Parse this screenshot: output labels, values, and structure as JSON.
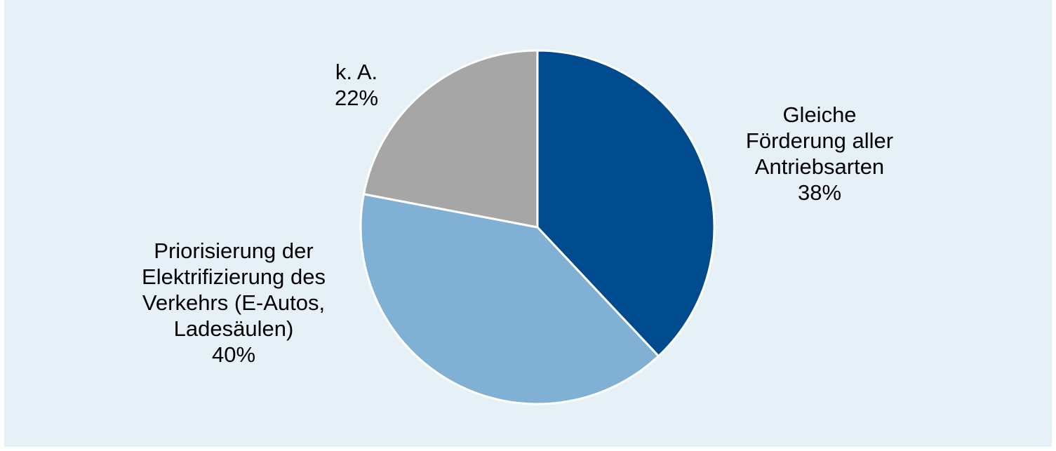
{
  "chart_data": {
    "type": "pie",
    "slices": [
      {
        "label_lines": [
          "Gleiche",
          "Förderung aller",
          "Antriebsarten"
        ],
        "value": 38,
        "value_label": "38%",
        "color": "#004b8d"
      },
      {
        "label_lines": [
          "Priorisierung der",
          "Elektrifizierung des",
          "Verkehrs (E-Autos,",
          "Ladesäulen)"
        ],
        "value": 40,
        "value_label": "40%",
        "color": "#80b1d5"
      },
      {
        "label_lines": [
          "k. A."
        ],
        "value": 22,
        "value_label": "22%",
        "color": "#a6a6a6"
      }
    ],
    "start_angle": "12 o'clock",
    "direction": "clockwise",
    "background_color": "#e6f0f7",
    "slice_border_color": "#ffffff"
  }
}
